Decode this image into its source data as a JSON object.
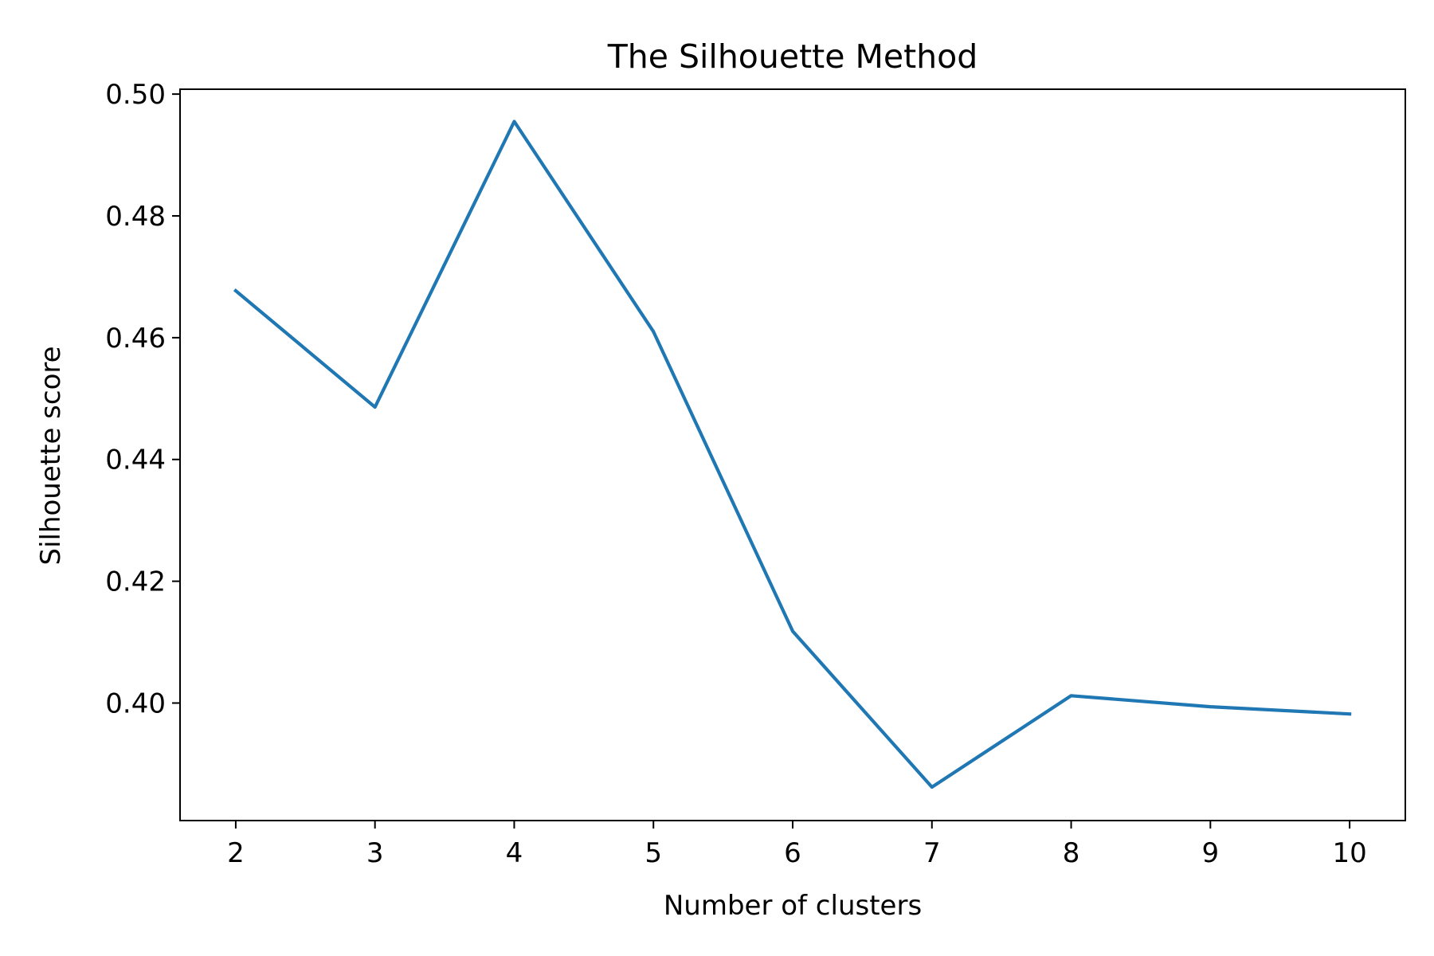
{
  "chart_data": {
    "type": "line",
    "title": "The Silhouette Method",
    "xlabel": "Number of clusters",
    "ylabel": "Silhouette score",
    "x": [
      2,
      3,
      4,
      5,
      6,
      7,
      8,
      9,
      10
    ],
    "series": [
      {
        "values": [
          0.4677,
          0.4486,
          0.4955,
          0.461,
          0.4118,
          0.3862,
          0.4012,
          0.3994,
          0.3982
        ],
        "color": "#1f77b4"
      }
    ],
    "xlim": [
      1.6,
      10.4
    ],
    "ylim": [
      0.3807,
      0.5008
    ],
    "xticks": [
      "2",
      "3",
      "4",
      "5",
      "6",
      "7",
      "8",
      "9",
      "10"
    ],
    "yticks": [
      "0.40",
      "0.42",
      "0.44",
      "0.46",
      "0.48",
      "0.50"
    ],
    "ytick_values": [
      0.4,
      0.42,
      0.44,
      0.46,
      0.48,
      0.5
    ],
    "grid": false,
    "legend": "none"
  }
}
